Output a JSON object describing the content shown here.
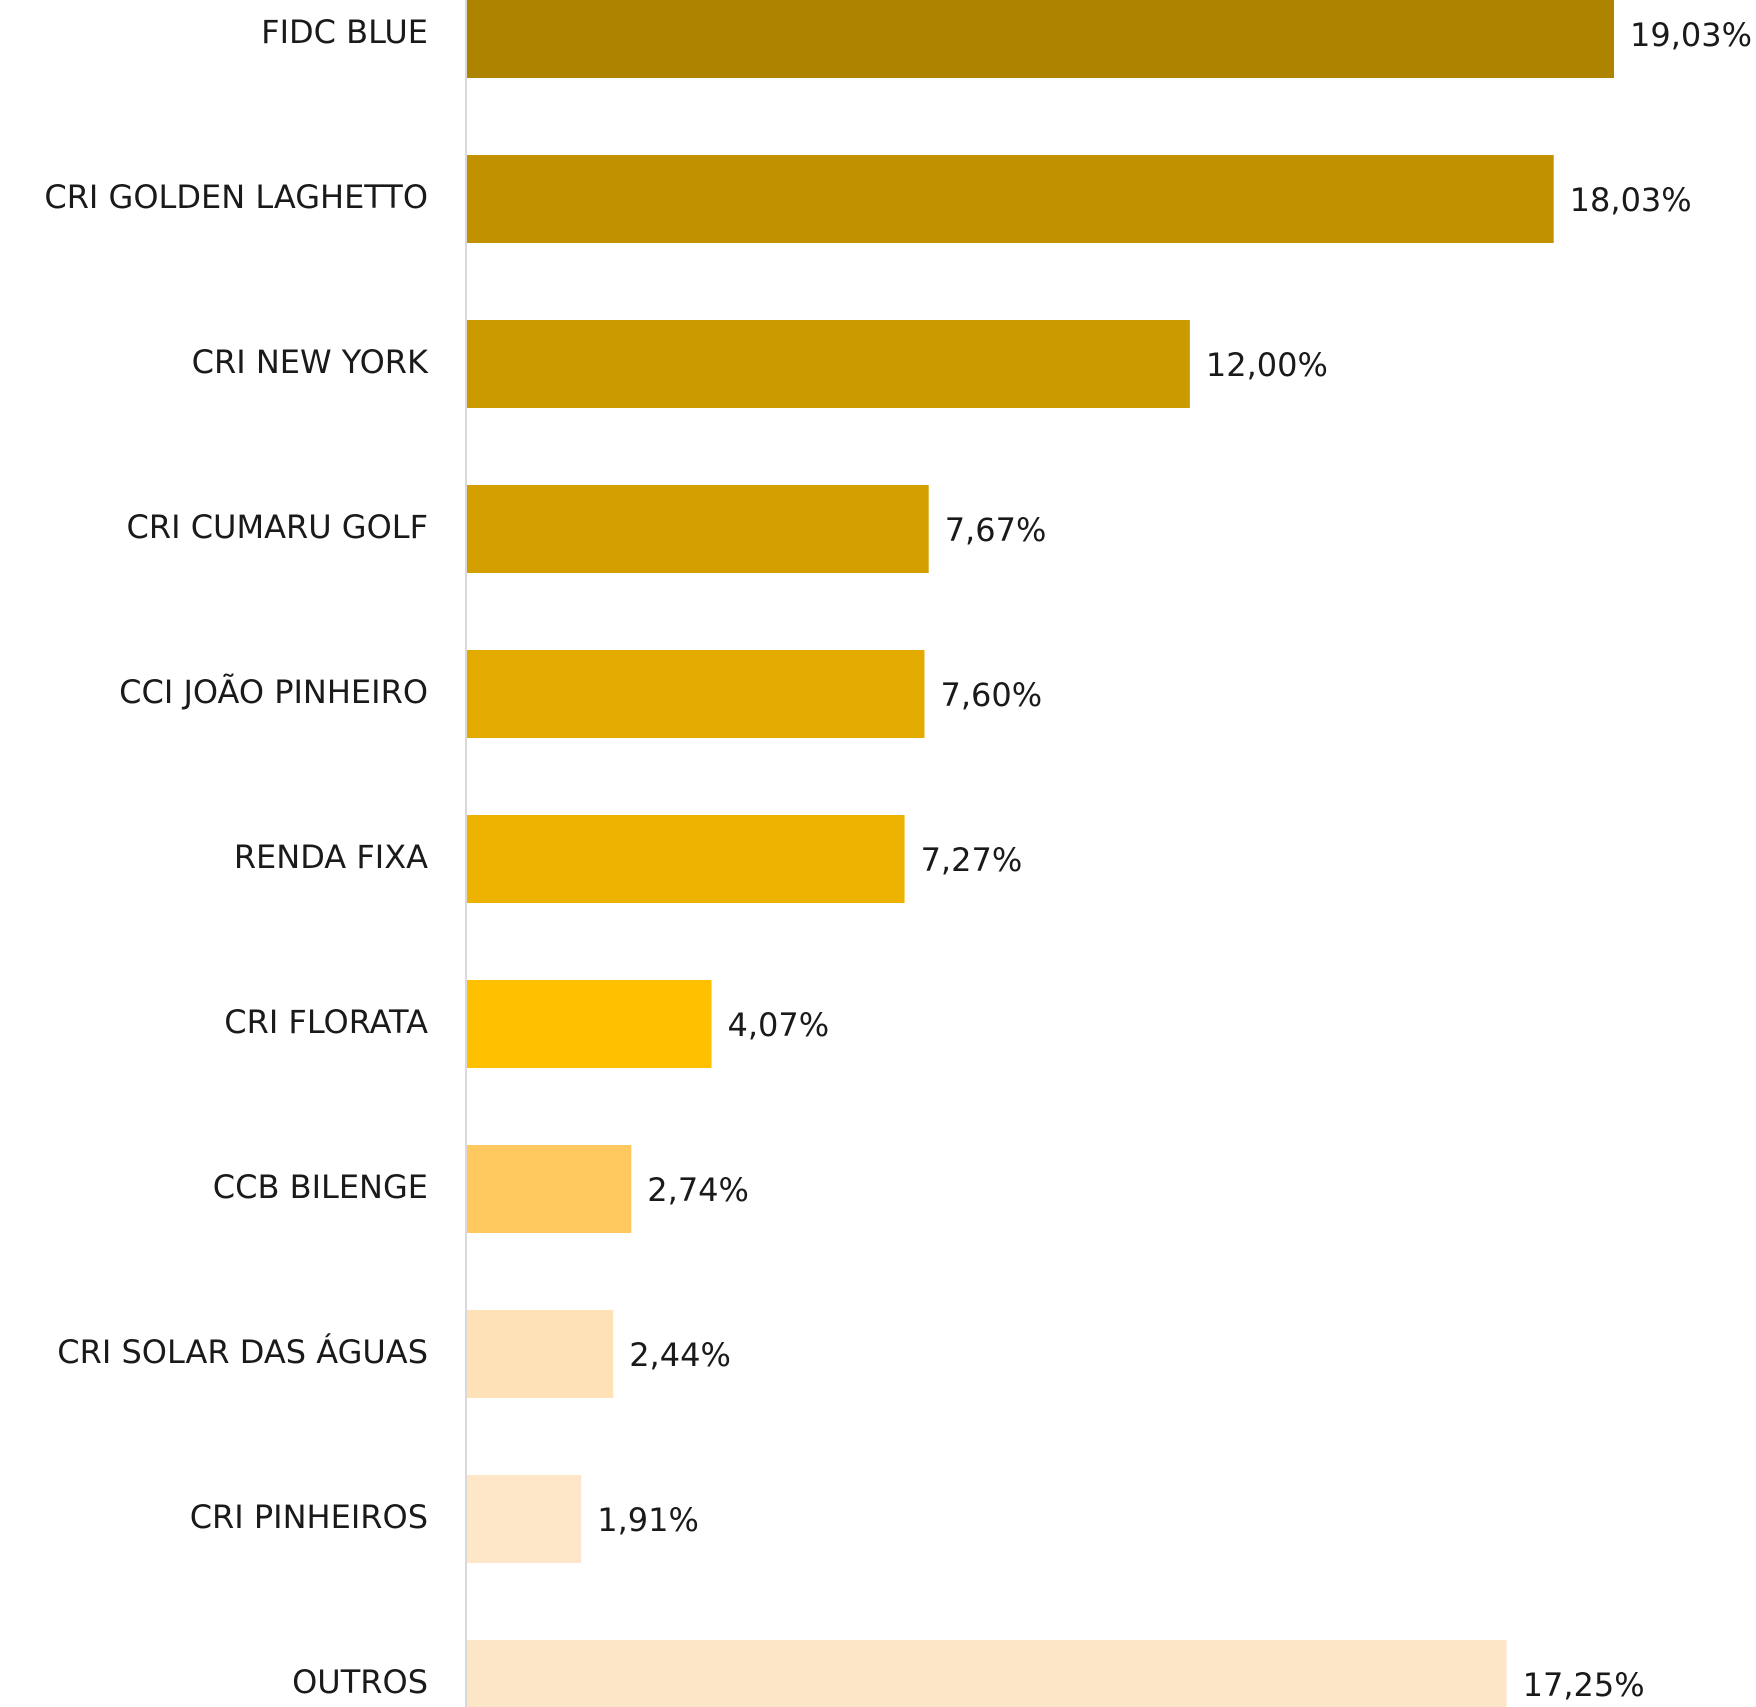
{
  "chart_data": {
    "type": "bar",
    "orientation": "horizontal",
    "categories": [
      "FIDC BLUE",
      "CRI GOLDEN LAGHETTO",
      "CRI NEW YORK",
      "CRI CUMARU GOLF",
      "CCI JOÃO PINHEIRO",
      "RENDA FIXA",
      "CRI FLORATA",
      "CCB BILENGE",
      "CRI SOLAR DAS ÁGUAS",
      "CRI PINHEIROS",
      "OUTROS"
    ],
    "values": [
      19.03,
      18.03,
      12.0,
      7.67,
      7.6,
      7.27,
      4.07,
      2.74,
      2.44,
      1.91,
      17.25
    ],
    "value_labels": [
      "19,03%",
      "18,03%",
      "12,00%",
      "7,67%",
      "7,60%",
      "7,27%",
      "4,07%",
      "2,74%",
      "2,44%",
      "1,91%",
      "17,25%"
    ],
    "colors": [
      "#AD8300",
      "#C19100",
      "#CB9900",
      "#D49F00",
      "#E3AA00",
      "#EEB300",
      "#FFC000",
      "#FFC95F",
      "#FEE1B6",
      "#FEE6C8",
      "#FDE6C8"
    ],
    "axis_color": "#d9d9d9",
    "grid": false,
    "legend": "none",
    "xlim": [
      0,
      19.03
    ]
  }
}
